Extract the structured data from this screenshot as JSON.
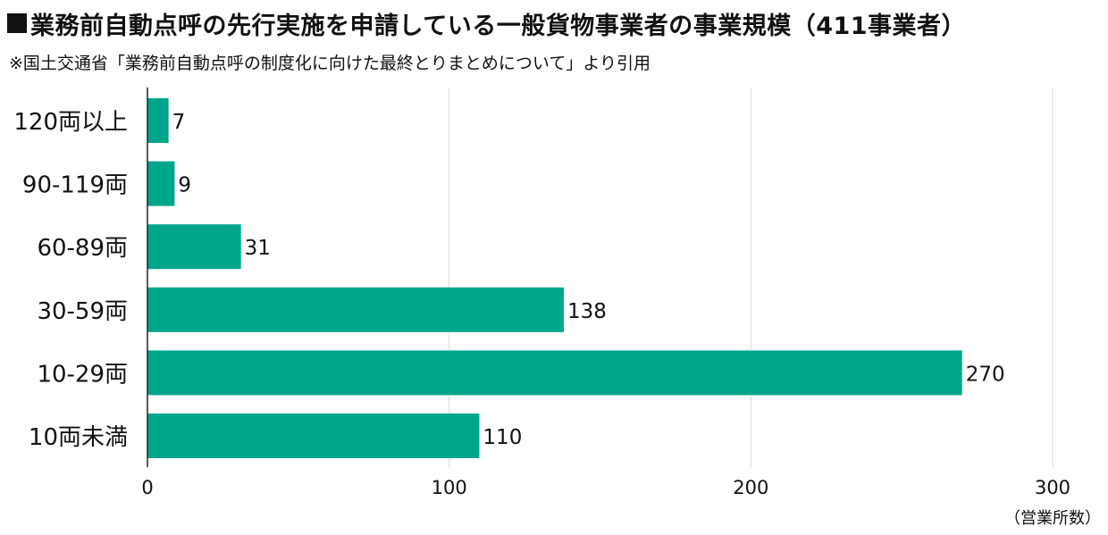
{
  "title": "業務前自動点呼の先行実施を申請している一般貨物事業者の事業規模（411事業者）",
  "subtitle": "※国土交通省「業務前自動点呼の制度化に向けた最終とりまとめについて」より引用",
  "colors": {
    "bar": "#00a58a",
    "grid": "#d9d9d9",
    "axis": "#222222",
    "text": "#111111"
  },
  "chart_data": {
    "type": "bar",
    "orientation": "horizontal",
    "title": "業務前自動点呼の先行実施を申請している一般貨物事業者の事業規模（411事業者）",
    "xlabel": "（営業所数）",
    "ylabel": "",
    "categories": [
      "120両以上",
      "90-119両",
      "60-89両",
      "30-59両",
      "10-29両",
      "10両未満"
    ],
    "values": [
      7,
      9,
      31,
      138,
      270,
      110
    ],
    "xlim": [
      0,
      300
    ],
    "xticks": [
      0,
      100,
      200,
      300
    ],
    "grid": true,
    "legend": "none",
    "data_labels": true
  }
}
